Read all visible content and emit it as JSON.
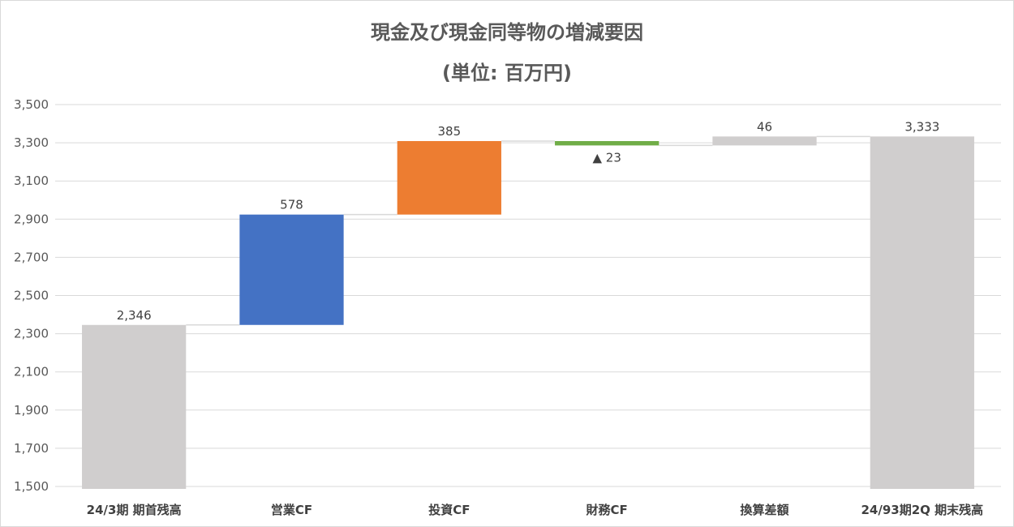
{
  "chart_data": {
    "type": "bar",
    "subtype": "waterfall",
    "title": "現金及び現金同等物の増減要因",
    "subtitle": "(単位: 百万円)",
    "ylim": [
      1500,
      3500
    ],
    "ytick_labels": [
      "1,500",
      "1,700",
      "1,900",
      "2,100",
      "2,300",
      "2,500",
      "2,700",
      "2,900",
      "3,100",
      "3,300",
      "3,500"
    ],
    "grid": true,
    "categories": [
      "24/3期 期首残高",
      "営業CF",
      "投資CF",
      "財務CF",
      "換算差額",
      "24/93期2Q 期末残高"
    ],
    "bars": [
      {
        "category": "24/3期 期首残高",
        "kind": "total",
        "start": 1500,
        "end": 2346,
        "label": "2,346",
        "color": "#d0cece"
      },
      {
        "category": "営業CF",
        "kind": "increase",
        "start": 2346,
        "end": 2924,
        "label": "578",
        "color": "#4472c4"
      },
      {
        "category": "投資CF",
        "kind": "increase",
        "start": 2924,
        "end": 3309,
        "label": "385",
        "color": "#ed7d31"
      },
      {
        "category": "財務CF",
        "kind": "decrease",
        "start": 3309,
        "end": 3286,
        "label": "▲ 23",
        "color": "#70ad47"
      },
      {
        "category": "換算差額",
        "kind": "increase",
        "start": 3286,
        "end": 3333,
        "label": "46",
        "color": "#d0cece"
      },
      {
        "category": "24/93期2Q 期末残高",
        "kind": "total",
        "start": 1500,
        "end": 3333,
        "label": "3,333",
        "color": "#d0cece"
      }
    ]
  }
}
